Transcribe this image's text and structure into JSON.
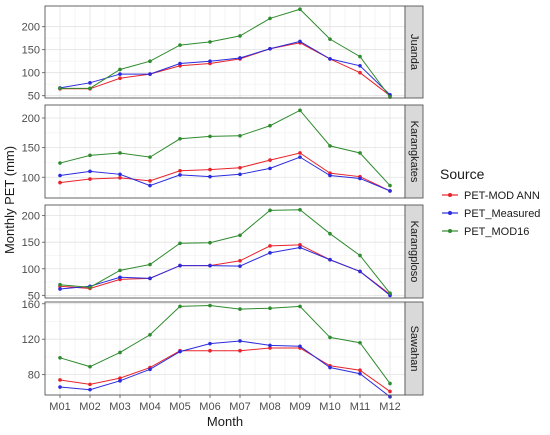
{
  "chart_data": {
    "type": "line",
    "xlabel": "Month",
    "ylabel": "Monthly PET (mm)",
    "categories": [
      "M01",
      "M02",
      "M03",
      "M04",
      "M05",
      "M06",
      "M07",
      "M08",
      "M09",
      "M10",
      "M11",
      "M12"
    ],
    "legend": {
      "title": "Source",
      "placement": "right",
      "entries": [
        {
          "name": "PET-MOD ANN",
          "color": "#e8232b"
        },
        {
          "name": "PET_Measured",
          "color": "#2b2bde"
        },
        {
          "name": "PET_MOD16",
          "color": "#2e8b2e"
        }
      ]
    },
    "grid": true,
    "panels": [
      {
        "strip": "Juanda",
        "ylim": [
          45,
          245
        ],
        "yticks": [
          50,
          100,
          150,
          200
        ],
        "series": [
          {
            "name": "PET-MOD ANN",
            "values": [
              65,
              65,
              88,
              97,
              115,
              120,
              130,
              152,
              165,
              130,
              100,
              50
            ]
          },
          {
            "name": "PET_Measured",
            "values": [
              67,
              78,
              97,
              97,
              120,
              125,
              132,
              152,
              168,
              130,
              115,
              52
            ]
          },
          {
            "name": "PET_MOD16",
            "values": [
              66,
              66,
              107,
              125,
              160,
              167,
              180,
              218,
              238,
              173,
              135,
              47
            ]
          }
        ]
      },
      {
        "strip": "Karangkates",
        "ylim": [
          65,
          222
        ],
        "yticks": [
          100,
          150,
          200
        ],
        "series": [
          {
            "name": "PET-MOD ANN",
            "values": [
              91,
              97,
              99,
              94,
              111,
              113,
              116,
              129,
              141,
              107,
              101,
              77
            ]
          },
          {
            "name": "PET_Measured",
            "values": [
              103,
              110,
              105,
              86,
              104,
              101,
              105,
              115,
              134,
              103,
              98,
              77
            ]
          },
          {
            "name": "PET_MOD16",
            "values": [
              124,
              137,
              141,
              134,
              165,
              169,
              170,
              187,
              213,
              153,
              141,
              86
            ]
          }
        ]
      },
      {
        "strip": "Karangploso",
        "ylim": [
          45,
          220
        ],
        "yticks": [
          50,
          100,
          150,
          200
        ],
        "series": [
          {
            "name": "PET-MOD ANN",
            "values": [
              67,
              63,
              80,
              82,
              106,
              106,
              115,
              143,
              145,
              117,
              95,
              52
            ]
          },
          {
            "name": "PET_Measured",
            "values": [
              62,
              67,
              84,
              82,
              106,
              106,
              105,
              130,
              140,
              117,
              95,
              50
            ]
          },
          {
            "name": "PET_MOD16",
            "values": [
              70,
              65,
              97,
              108,
              148,
              149,
              163,
              210,
              211,
              166,
              125,
              54
            ]
          }
        ]
      },
      {
        "strip": "Sawahan",
        "ylim": [
          57,
          162
        ],
        "yticks": [
          80,
          120,
          160
        ],
        "series": [
          {
            "name": "PET-MOD ANN",
            "values": [
              74,
              69,
              76,
              88,
              107,
              107,
              107,
              110,
              110,
              90,
              85,
              61
            ]
          },
          {
            "name": "PET_Measured",
            "values": [
              66,
              63,
              73,
              86,
              106,
              115,
              118,
              113,
              112,
              88,
              81,
              55
            ]
          },
          {
            "name": "PET_MOD16",
            "values": [
              99,
              89,
              105,
              125,
              157,
              158,
              154,
              155,
              157,
              122,
              116,
              70
            ]
          }
        ]
      }
    ]
  }
}
